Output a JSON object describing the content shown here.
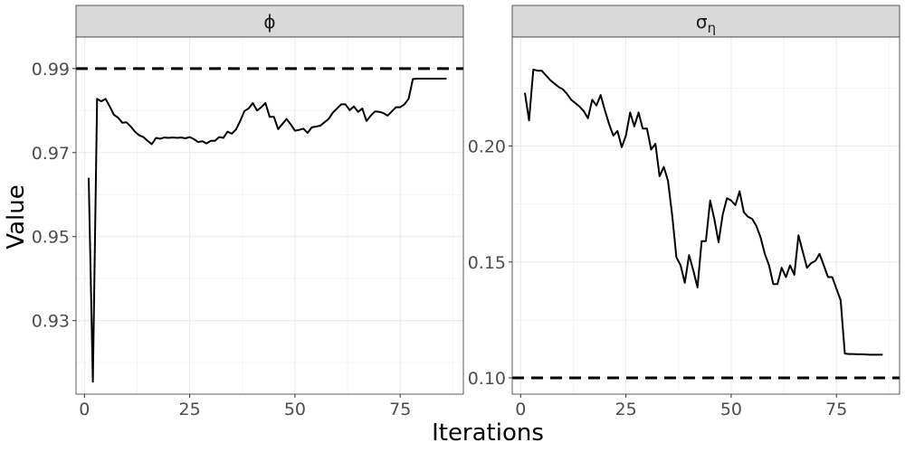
{
  "chart_data": {
    "type": "line",
    "xlabel": "Iterations",
    "ylabel": "Value",
    "grid": true,
    "panels": [
      {
        "strip": {
          "symbol": "ϕ",
          "subscript": ""
        },
        "xlim": [
          -2,
          90
        ],
        "ylim": [
          0.9125,
          0.9975
        ],
        "xticks": [
          {
            "v": 0,
            "label": "0"
          },
          {
            "v": 25,
            "label": "25"
          },
          {
            "v": 50,
            "label": "50"
          },
          {
            "v": 75,
            "label": "75"
          }
        ],
        "yticks": [
          {
            "v": 0.93,
            "label": "0.93"
          },
          {
            "v": 0.95,
            "label": "0.95"
          },
          {
            "v": 0.97,
            "label": "0.97"
          },
          {
            "v": 0.99,
            "label": "0.99"
          }
        ],
        "reference_line": 0.99,
        "series": [
          {
            "x": [
              1,
              2,
              3,
              4,
              5,
              6,
              7,
              8,
              9,
              10,
              11,
              12,
              13,
              14,
              15,
              16,
              17,
              18,
              19,
              20,
              21,
              22,
              23,
              24,
              25,
              26,
              27,
              28,
              29,
              30,
              31,
              32,
              33,
              34,
              35,
              36,
              37,
              38,
              39,
              40,
              41,
              42,
              43,
              44,
              45,
              46,
              47,
              48,
              49,
              50,
              51,
              52,
              53,
              54,
              55,
              56,
              57,
              58,
              59,
              60,
              61,
              62,
              63,
              64,
              65,
              66,
              67,
              68,
              69,
              70,
              71,
              72,
              73,
              74,
              75,
              76,
              77,
              78,
              79,
              80,
              81,
              82,
              83,
              84,
              85,
              86
            ],
            "y": [
              0.964,
              0.9155,
              0.9828,
              0.9822,
              0.9828,
              0.981,
              0.979,
              0.9783,
              0.9771,
              0.9772,
              0.9762,
              0.975,
              0.9741,
              0.9737,
              0.9728,
              0.972,
              0.9735,
              0.9733,
              0.9736,
              0.9735,
              0.9736,
              0.9735,
              0.9736,
              0.9734,
              0.9737,
              0.9732,
              0.9725,
              0.9727,
              0.9722,
              0.9728,
              0.9728,
              0.9737,
              0.9735,
              0.975,
              0.9745,
              0.9755,
              0.9775,
              0.9799,
              0.9805,
              0.9818,
              0.98,
              0.9808,
              0.9818,
              0.9785,
              0.9785,
              0.9756,
              0.9768,
              0.978,
              0.9767,
              0.9752,
              0.9754,
              0.9757,
              0.9747,
              0.976,
              0.9762,
              0.9764,
              0.9772,
              0.978,
              0.9795,
              0.9805,
              0.9815,
              0.9815,
              0.9801,
              0.981,
              0.9797,
              0.9805,
              0.9775,
              0.9788,
              0.9798,
              0.9797,
              0.9794,
              0.9788,
              0.9798,
              0.9808,
              0.9808,
              0.9815,
              0.9828,
              0.9875,
              0.9876,
              0.9876,
              0.9876,
              0.9876,
              0.9876,
              0.9876,
              0.9876,
              0.9876
            ]
          }
        ]
      },
      {
        "strip": {
          "symbol": "σ",
          "subscript": "η"
        },
        "xlim": [
          -2,
          90
        ],
        "ylim": [
          0.093,
          0.247
        ],
        "xticks": [
          {
            "v": 0,
            "label": "0"
          },
          {
            "v": 25,
            "label": "25"
          },
          {
            "v": 50,
            "label": "50"
          },
          {
            "v": 75,
            "label": "75"
          }
        ],
        "yticks": [
          {
            "v": 0.1,
            "label": "0.10"
          },
          {
            "v": 0.15,
            "label": "0.15"
          },
          {
            "v": 0.2,
            "label": "0.20"
          }
        ],
        "reference_line": 0.1,
        "series": [
          {
            "x": [
              1,
              2,
              3,
              4,
              5,
              6,
              7,
              8,
              9,
              10,
              11,
              12,
              13,
              14,
              15,
              16,
              17,
              18,
              19,
              20,
              21,
              22,
              23,
              24,
              25,
              26,
              27,
              28,
              29,
              30,
              31,
              32,
              33,
              34,
              35,
              36,
              37,
              38,
              39,
              40,
              41,
              42,
              43,
              44,
              45,
              46,
              47,
              48,
              49,
              50,
              51,
              52,
              53,
              54,
              55,
              56,
              57,
              58,
              59,
              60,
              61,
              62,
              63,
              64,
              65,
              66,
              67,
              68,
              69,
              70,
              71,
              72,
              73,
              74,
              75,
              76,
              77,
              78,
              79,
              80,
              81,
              82,
              83,
              84,
              85,
              86
            ],
            "y": [
              0.223,
              0.211,
              0.233,
              0.2325,
              0.2325,
              0.2305,
              0.2285,
              0.227,
              0.2255,
              0.2245,
              0.2225,
              0.22,
              0.2185,
              0.217,
              0.215,
              0.212,
              0.22,
              0.2175,
              0.222,
              0.2155,
              0.2095,
              0.2045,
              0.2065,
              0.1995,
              0.2045,
              0.2145,
              0.2085,
              0.2145,
              0.2075,
              0.2075,
              0.1985,
              0.201,
              0.187,
              0.191,
              0.185,
              0.17,
              0.152,
              0.1485,
              0.141,
              0.153,
              0.1465,
              0.139,
              0.159,
              0.159,
              0.1765,
              0.1685,
              0.1585,
              0.1705,
              0.1775,
              0.1765,
              0.1745,
              0.1805,
              0.1715,
              0.1695,
              0.1685,
              0.1655,
              0.1605,
              0.1535,
              0.1485,
              0.1405,
              0.1405,
              0.1475,
              0.1435,
              0.1485,
              0.1445,
              0.1615,
              0.1545,
              0.1475,
              0.1495,
              0.1505,
              0.1535,
              0.1485,
              0.1435,
              0.1435,
              0.1385,
              0.1335,
              0.1105,
              0.1103,
              0.1103,
              0.1102,
              0.1102,
              0.1101,
              0.11,
              0.11,
              0.11,
              0.11
            ]
          }
        ]
      }
    ]
  }
}
